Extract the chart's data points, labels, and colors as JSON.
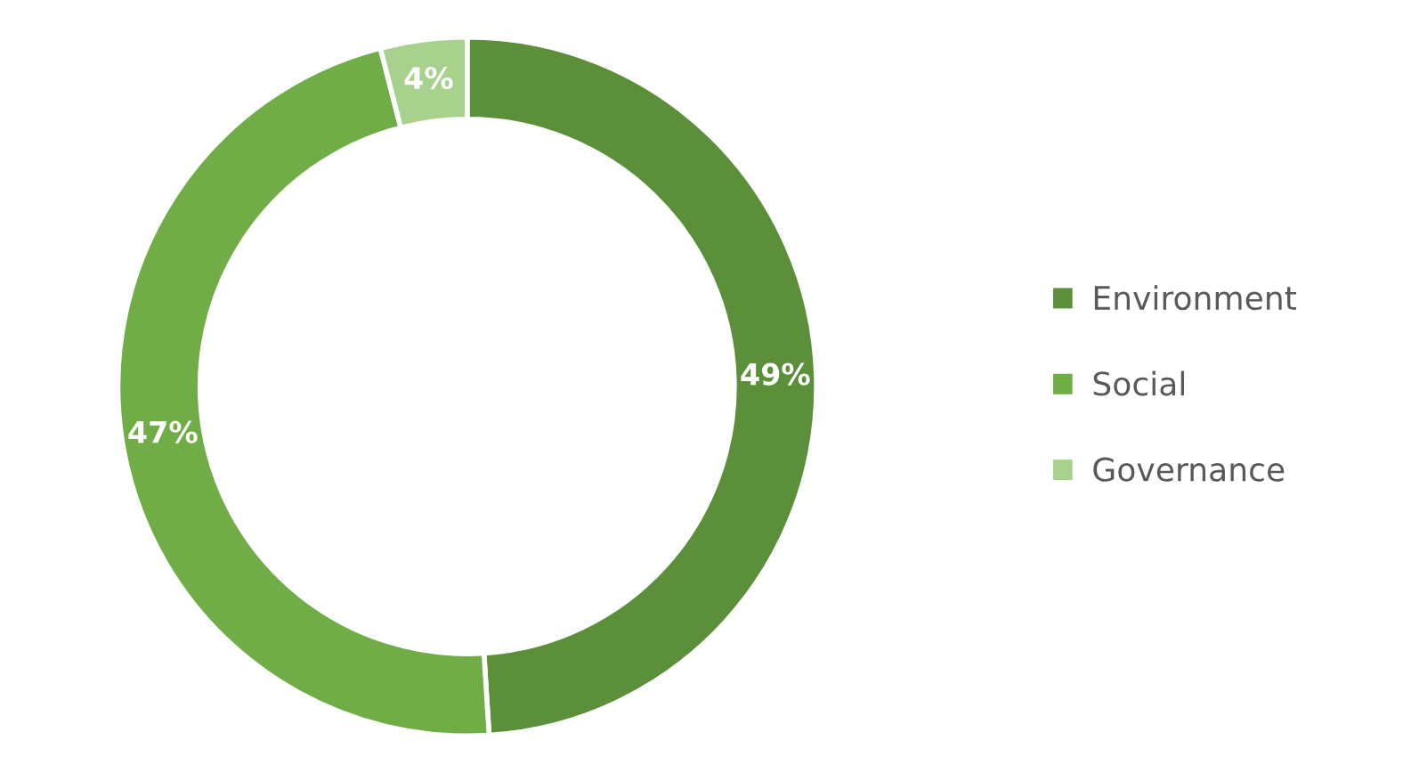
{
  "chart_data": {
    "type": "donut",
    "categories": [
      "Environment",
      "Social",
      "Governance"
    ],
    "values": [
      49,
      47,
      4
    ],
    "colors": [
      "#5b8f3a",
      "#70ad47",
      "#a9d18e"
    ],
    "value_labels": [
      "49%",
      "47%",
      "4%"
    ],
    "legend": "right"
  }
}
